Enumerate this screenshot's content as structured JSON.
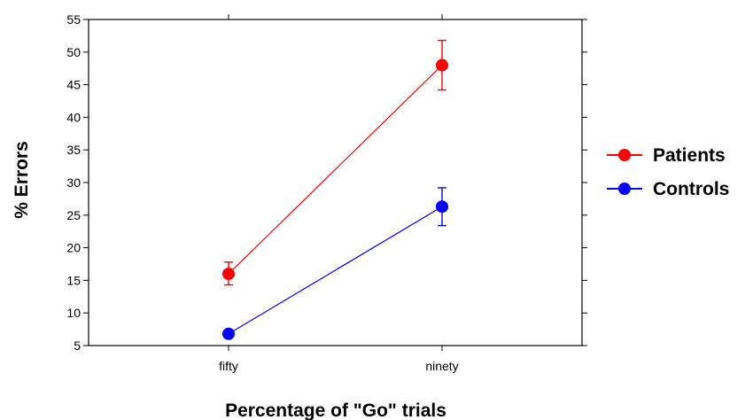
{
  "chart_data": {
    "type": "line",
    "title": "",
    "xlabel": "Percentage of \"Go\" trials",
    "ylabel": "% Errors",
    "categories": [
      "fifty",
      "ninety"
    ],
    "ylim": [
      5,
      55
    ],
    "yticks": [
      5,
      10,
      15,
      20,
      25,
      30,
      35,
      40,
      45,
      50,
      55
    ],
    "grid": false,
    "legend_position": "right",
    "series": [
      {
        "name": "Patients",
        "color": "#ff0000",
        "values": [
          16.0,
          48.0
        ],
        "error_low": [
          14.3,
          44.2
        ],
        "error_high": [
          17.8,
          51.8
        ]
      },
      {
        "name": "Controls",
        "color": "#0000ff",
        "values": [
          6.8,
          26.3
        ],
        "error_low": [
          6.3,
          23.4
        ],
        "error_high": [
          7.3,
          29.2
        ]
      }
    ]
  }
}
